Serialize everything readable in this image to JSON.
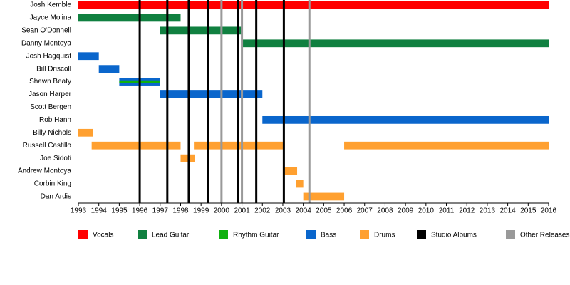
{
  "chart_data": {
    "type": "timeline",
    "categories": [
      "Josh Kemble",
      "Jayce Molina",
      "Sean O'Donnell",
      "Danny Montoya",
      "Josh Hagquist",
      "Bill Driscoll",
      "Shawn Beaty",
      "Jason Harper",
      "Scott Bergen",
      "Rob Hann",
      "Billy Nichols",
      "Russell Castillo",
      "Joe Sidoti",
      "Andrew Montoya",
      "Corbin King",
      "Dan Ardis"
    ],
    "series": [
      {
        "name": "Vocals",
        "color": "#ff0000",
        "bar_height": 0.6,
        "values": [
          [
            [
              1993,
              2016
            ]
          ],
          null,
          null,
          null,
          null,
          null,
          null,
          null,
          null,
          null,
          null,
          null,
          null,
          null,
          null,
          null
        ]
      },
      {
        "name": "Lead Guitar",
        "color": "#108040",
        "bar_height": 0.6,
        "values": [
          null,
          [
            [
              1993,
              1998
            ]
          ],
          [
            [
              1997,
              2001
            ]
          ],
          [
            [
              2001,
              2016
            ]
          ],
          null,
          null,
          null,
          null,
          null,
          null,
          null,
          null,
          null,
          null,
          null,
          null
        ]
      },
      {
        "name": "Rhythm Guitar",
        "color": "#10b010",
        "bar_height": 0.2,
        "values": [
          null,
          null,
          null,
          null,
          null,
          null,
          [
            [
              1995,
              1997
            ]
          ],
          null,
          null,
          null,
          null,
          null,
          null,
          null,
          null,
          null
        ]
      },
      {
        "name": "Bass",
        "color": "#0a66cc",
        "bar_height": 0.6,
        "values": [
          null,
          null,
          null,
          null,
          [
            [
              1993,
              1994
            ]
          ],
          [
            [
              1994,
              1995
            ]
          ],
          [
            [
              1995,
              1997
            ]
          ],
          [
            [
              1997,
              2002
            ]
          ],
          null,
          [
            [
              2002,
              2016
            ]
          ],
          null,
          null,
          null,
          null,
          null,
          null
        ]
      },
      {
        "name": "Drums",
        "color": "#ffa030",
        "bar_height": 0.6,
        "values": [
          null,
          null,
          null,
          null,
          null,
          null,
          null,
          null,
          null,
          null,
          [
            [
              1993,
              1993.7
            ]
          ],
          [
            [
              1993.65,
              1998
            ],
            [
              1998.65,
              2003
            ],
            [
              2006,
              2016
            ]
          ],
          [
            [
              1998,
              1998.7
            ]
          ],
          [
            [
              2003,
              2003.7
            ]
          ],
          [
            [
              2003.65,
              2004
            ]
          ],
          [
            [
              2004,
              2006
            ]
          ]
        ]
      }
    ],
    "events": [
      {
        "name": "Studio Albums",
        "color": "#000000",
        "x": [
          1996,
          1997.35,
          1998.4,
          1999.35,
          2000.8,
          2001.7,
          2003.05
        ]
      },
      {
        "name": "Other Releases",
        "color": "#999999",
        "x": [
          2000,
          2001,
          2004.3
        ]
      }
    ],
    "xlim": [
      1993,
      2016
    ],
    "xticks": [
      1993,
      1994,
      1995,
      1996,
      1997,
      1998,
      1999,
      2000,
      2001,
      2002,
      2003,
      2004,
      2005,
      2006,
      2007,
      2008,
      2009,
      2010,
      2011,
      2012,
      2013,
      2014,
      2015,
      2016
    ]
  }
}
